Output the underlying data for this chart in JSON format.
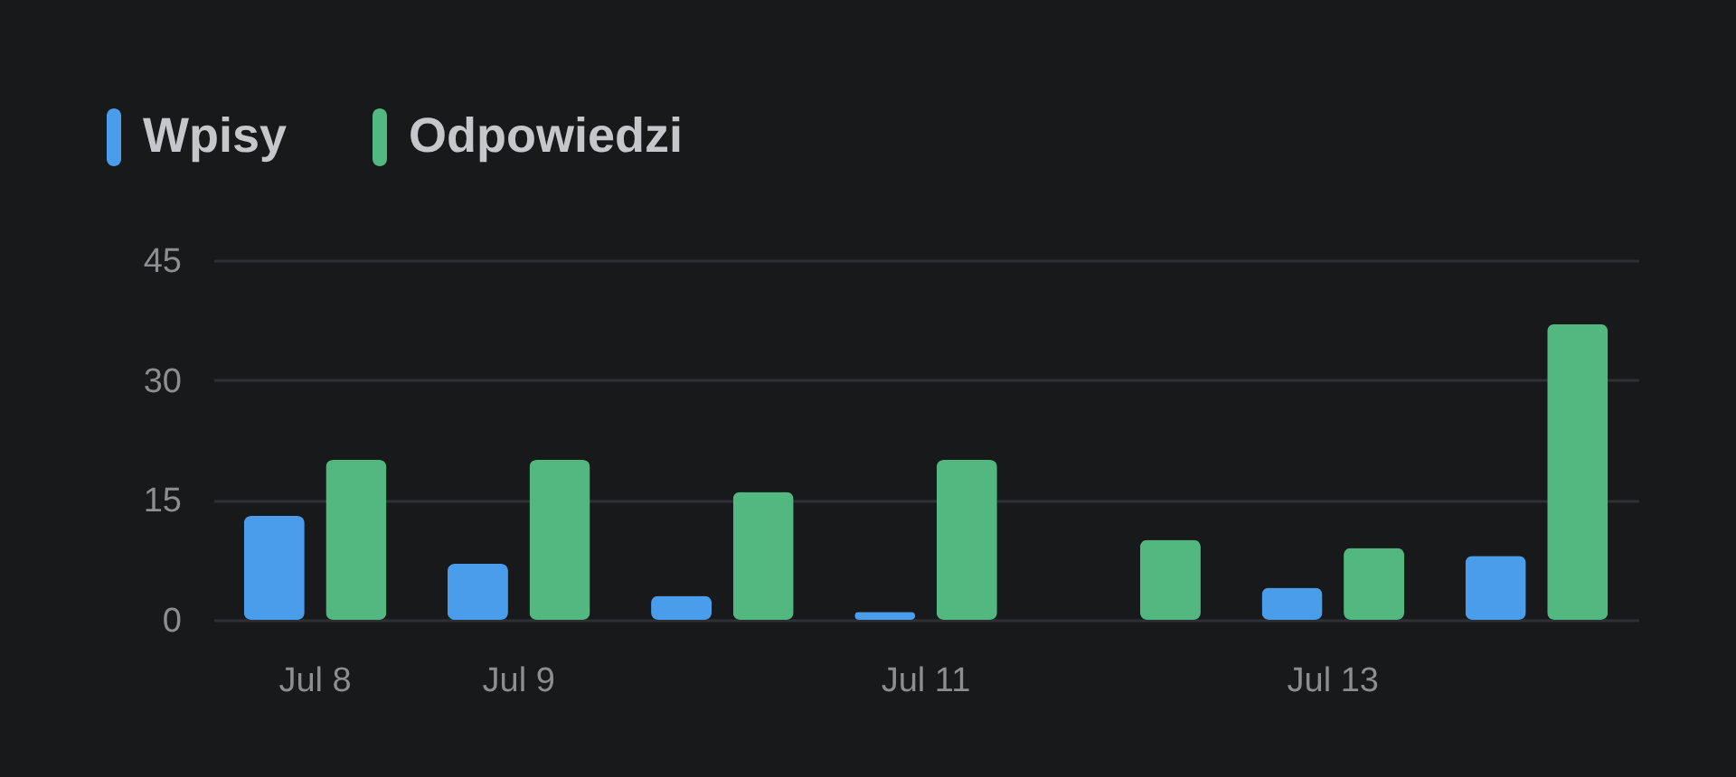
{
  "chart_data": {
    "type": "bar",
    "categories": [
      "Jul 8",
      "Jul 9",
      null,
      "Jul 11",
      null,
      "Jul 13",
      null
    ],
    "series": [
      {
        "name": "Wpisy",
        "color": "#4a9dea",
        "values": [
          13,
          7,
          3,
          1,
          0,
          4,
          8
        ]
      },
      {
        "name": "Odpowiedzi",
        "color": "#52b880",
        "values": [
          20,
          20,
          16,
          20,
          10,
          9,
          37
        ]
      }
    ],
    "ylim": [
      0,
      45
    ],
    "yticks": [
      0,
      15,
      30,
      45
    ],
    "grid": "y",
    "legend": "top left"
  }
}
